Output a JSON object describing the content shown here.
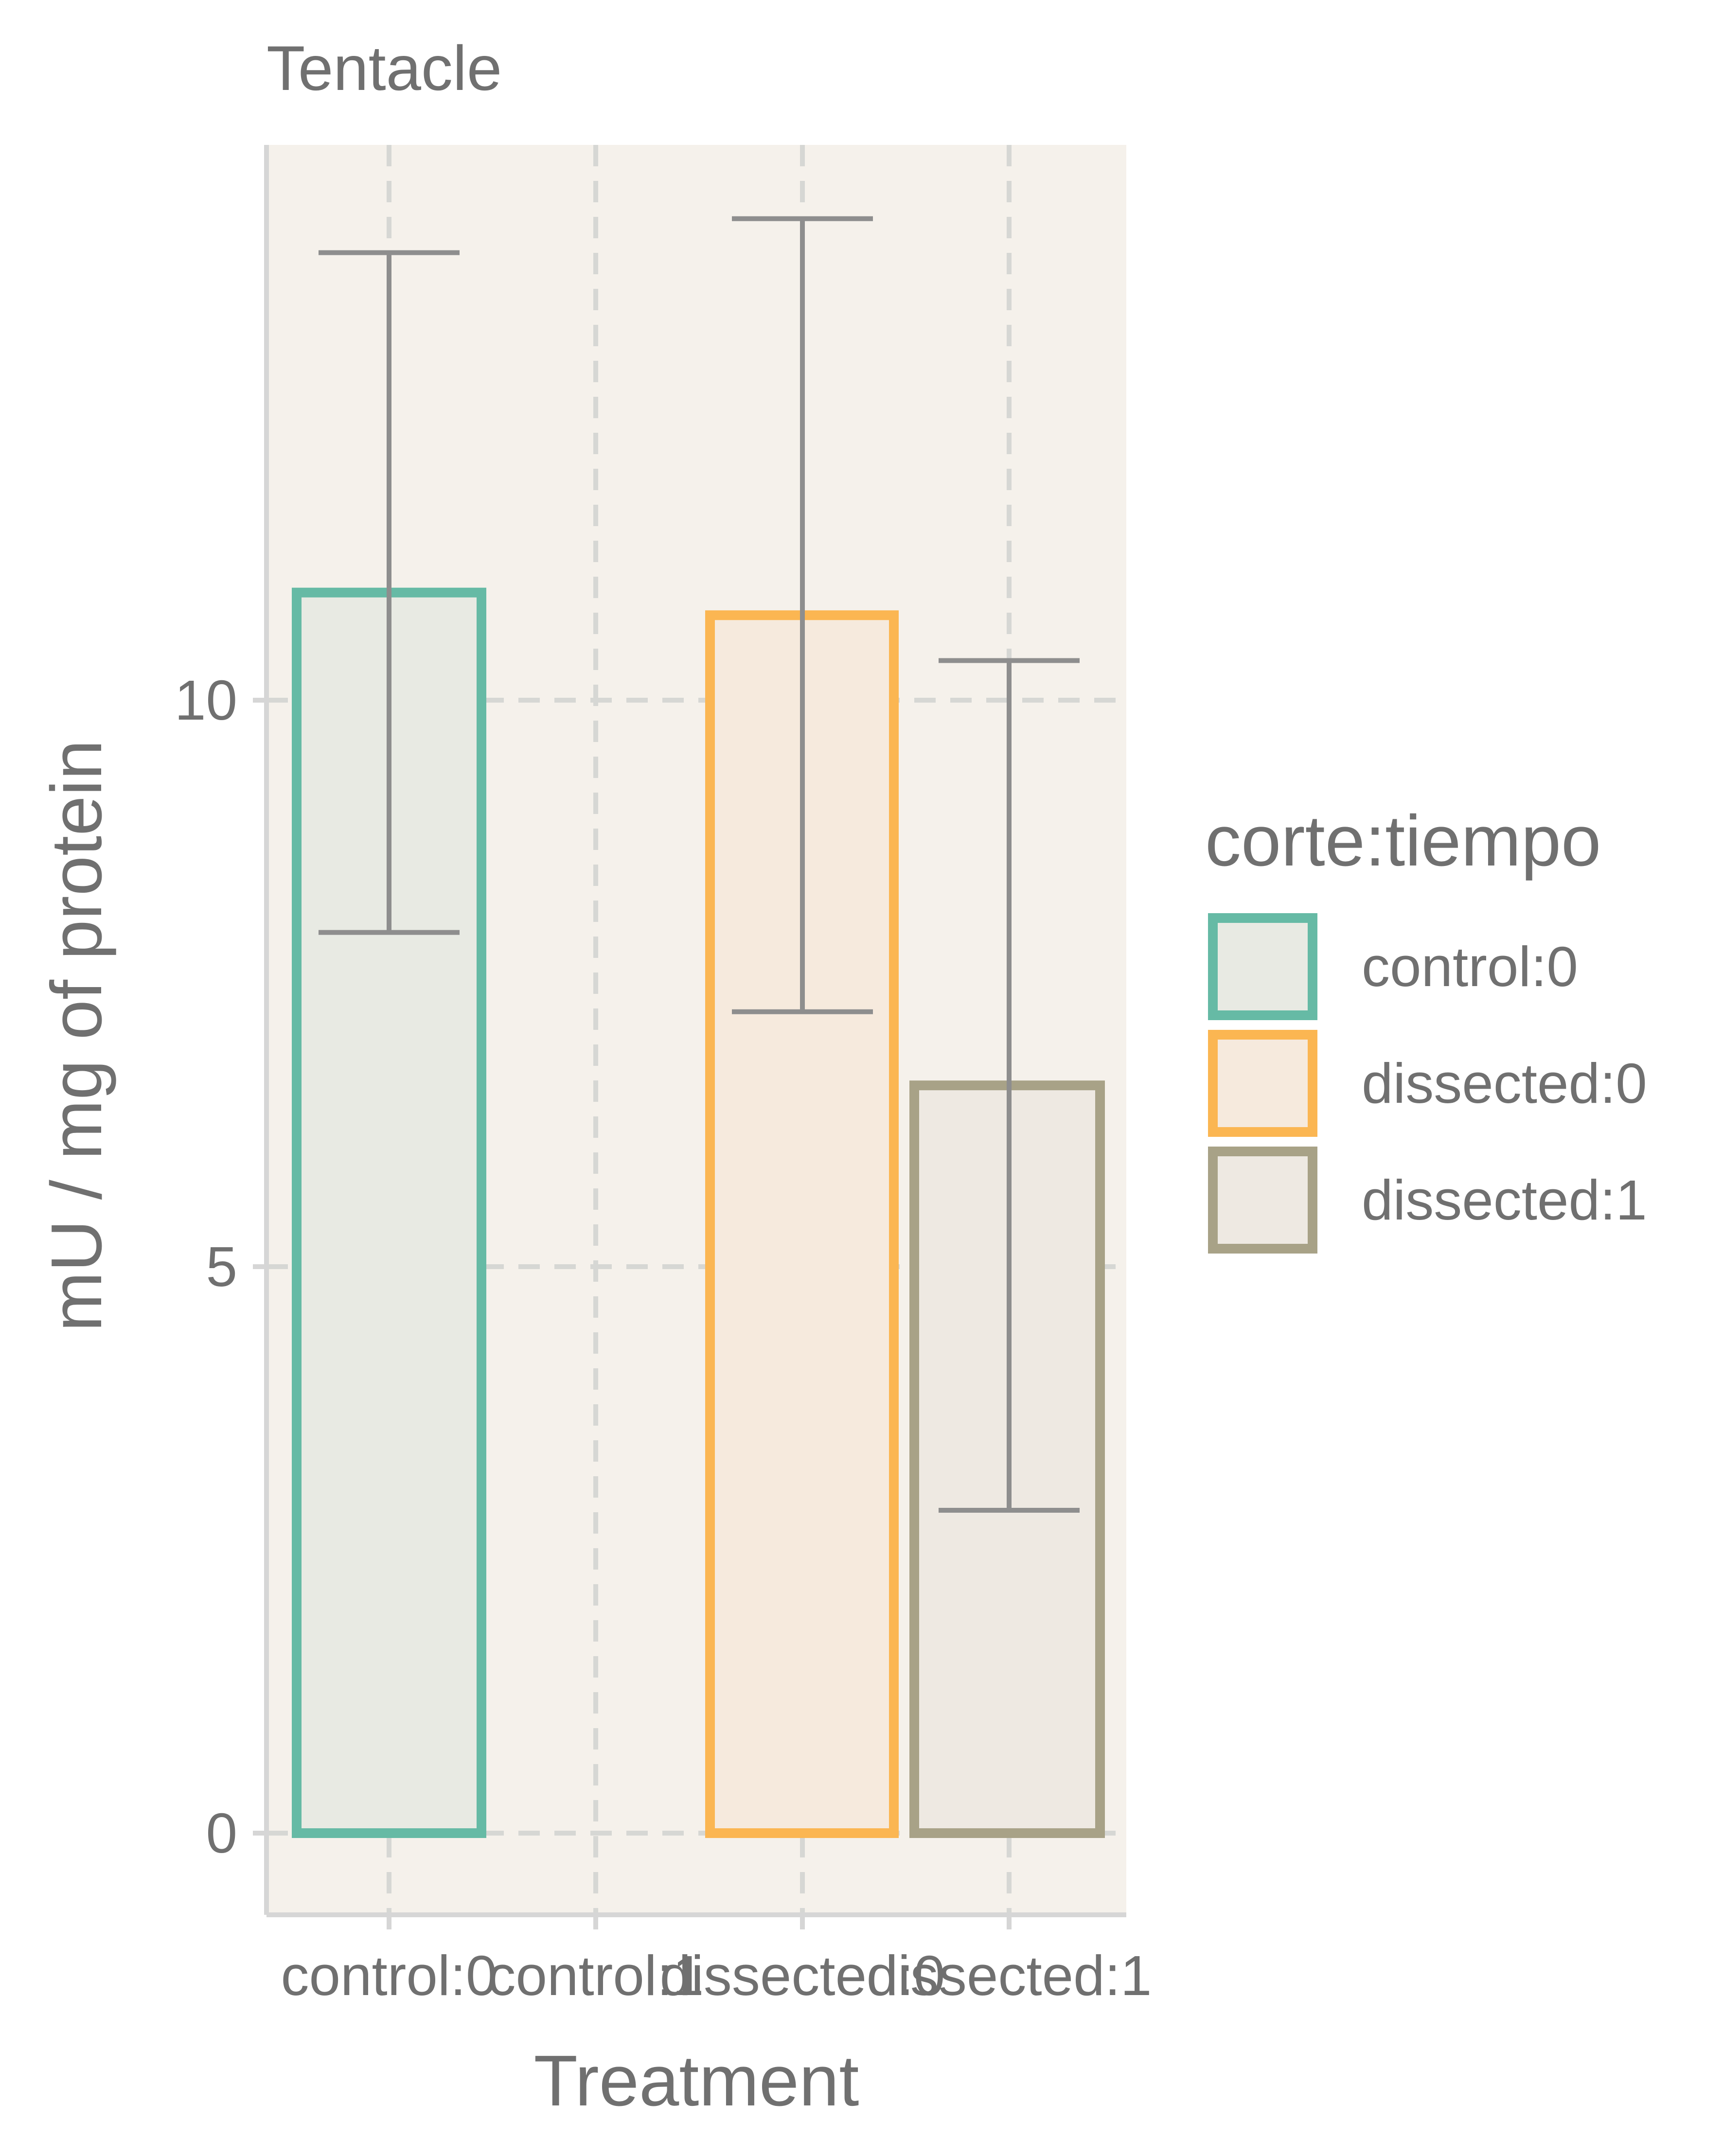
{
  "chart_data": {
    "type": "bar",
    "title": "Tentacle",
    "xlabel": "Treatment",
    "ylabel": "mU / mg  of protein",
    "categories": [
      "control:0",
      "control:1",
      "dissected:0",
      "dissected:1"
    ],
    "yticks": [
      0,
      5,
      10
    ],
    "ylim": [
      -0.7,
      14.9
    ],
    "grid": true,
    "legend": {
      "title": "corte:tiempo",
      "position": "right",
      "entries": [
        "control:0",
        "dissected:0",
        "dissected:1"
      ]
    },
    "series": [
      {
        "name": "control:0",
        "category": "control:0",
        "value": 10.95,
        "error_low": 7.95,
        "error_high": 13.95,
        "stroke": "#66BAA5",
        "fill": "#E8EAE3"
      },
      {
        "name": "dissected:0",
        "category": "dissected:0",
        "value": 10.75,
        "error_low": 7.25,
        "error_high": 14.25,
        "stroke": "#FBB652",
        "fill": "#F6EADD"
      },
      {
        "name": "dissected:1",
        "category": "dissected:1",
        "value": 6.6,
        "error_low": 2.85,
        "error_high": 10.35,
        "stroke": "#A8A287",
        "fill": "#EEE9E2"
      }
    ],
    "colors": {
      "panel_background": "#F5F1EB",
      "grid": "#D6D7D4",
      "axis_line": "#D6D6D6",
      "error_bar": "#8E8E8E",
      "text": "#707070"
    }
  }
}
